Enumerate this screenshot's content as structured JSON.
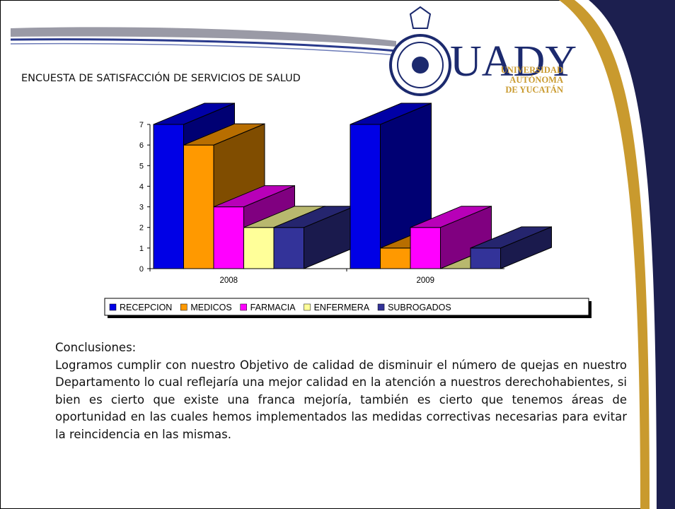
{
  "slide_title": "ENCUESTA DE SATISFACCIÓN DE SERVICIOS DE SALUD",
  "logo": {
    "name": "UADY",
    "lines": [
      "UNIVERSIDAD",
      "AUTÓNOMA",
      "DE YUCATÁN"
    ]
  },
  "chart_data": {
    "type": "bar",
    "categories": [
      "2008",
      "2009"
    ],
    "series": [
      {
        "name": "RECEPCION",
        "color": "#0000e6",
        "values": [
          7,
          7
        ]
      },
      {
        "name": "MEDICOS",
        "color": "#ff9900",
        "values": [
          6,
          1
        ]
      },
      {
        "name": "FARMACIA",
        "color": "#ff00ff",
        "values": [
          3,
          2
        ]
      },
      {
        "name": "ENFERMERA",
        "color": "#ffff99",
        "values": [
          2,
          0
        ]
      },
      {
        "name": "SUBROGADOS",
        "color": "#333399",
        "values": [
          2,
          1
        ]
      }
    ],
    "ylim": [
      0,
      7
    ],
    "yticks": [
      0,
      1,
      2,
      3,
      4,
      5,
      6,
      7
    ],
    "legend": "bottom"
  },
  "conclusions": {
    "heading": "Conclusiones:",
    "text": "Logramos cumplir con nuestro Objetivo de calidad de disminuir el número de quejas en nuestro Departamento lo cual reflejaría una mejor calidad en la atención a nuestros derechohabientes, si bien es cierto que existe una franca mejoría, también es cierto que tenemos áreas de oportunidad en las cuales hemos implementados las medidas correctivas necesarias para evitar la reincidencia en las mismas."
  }
}
